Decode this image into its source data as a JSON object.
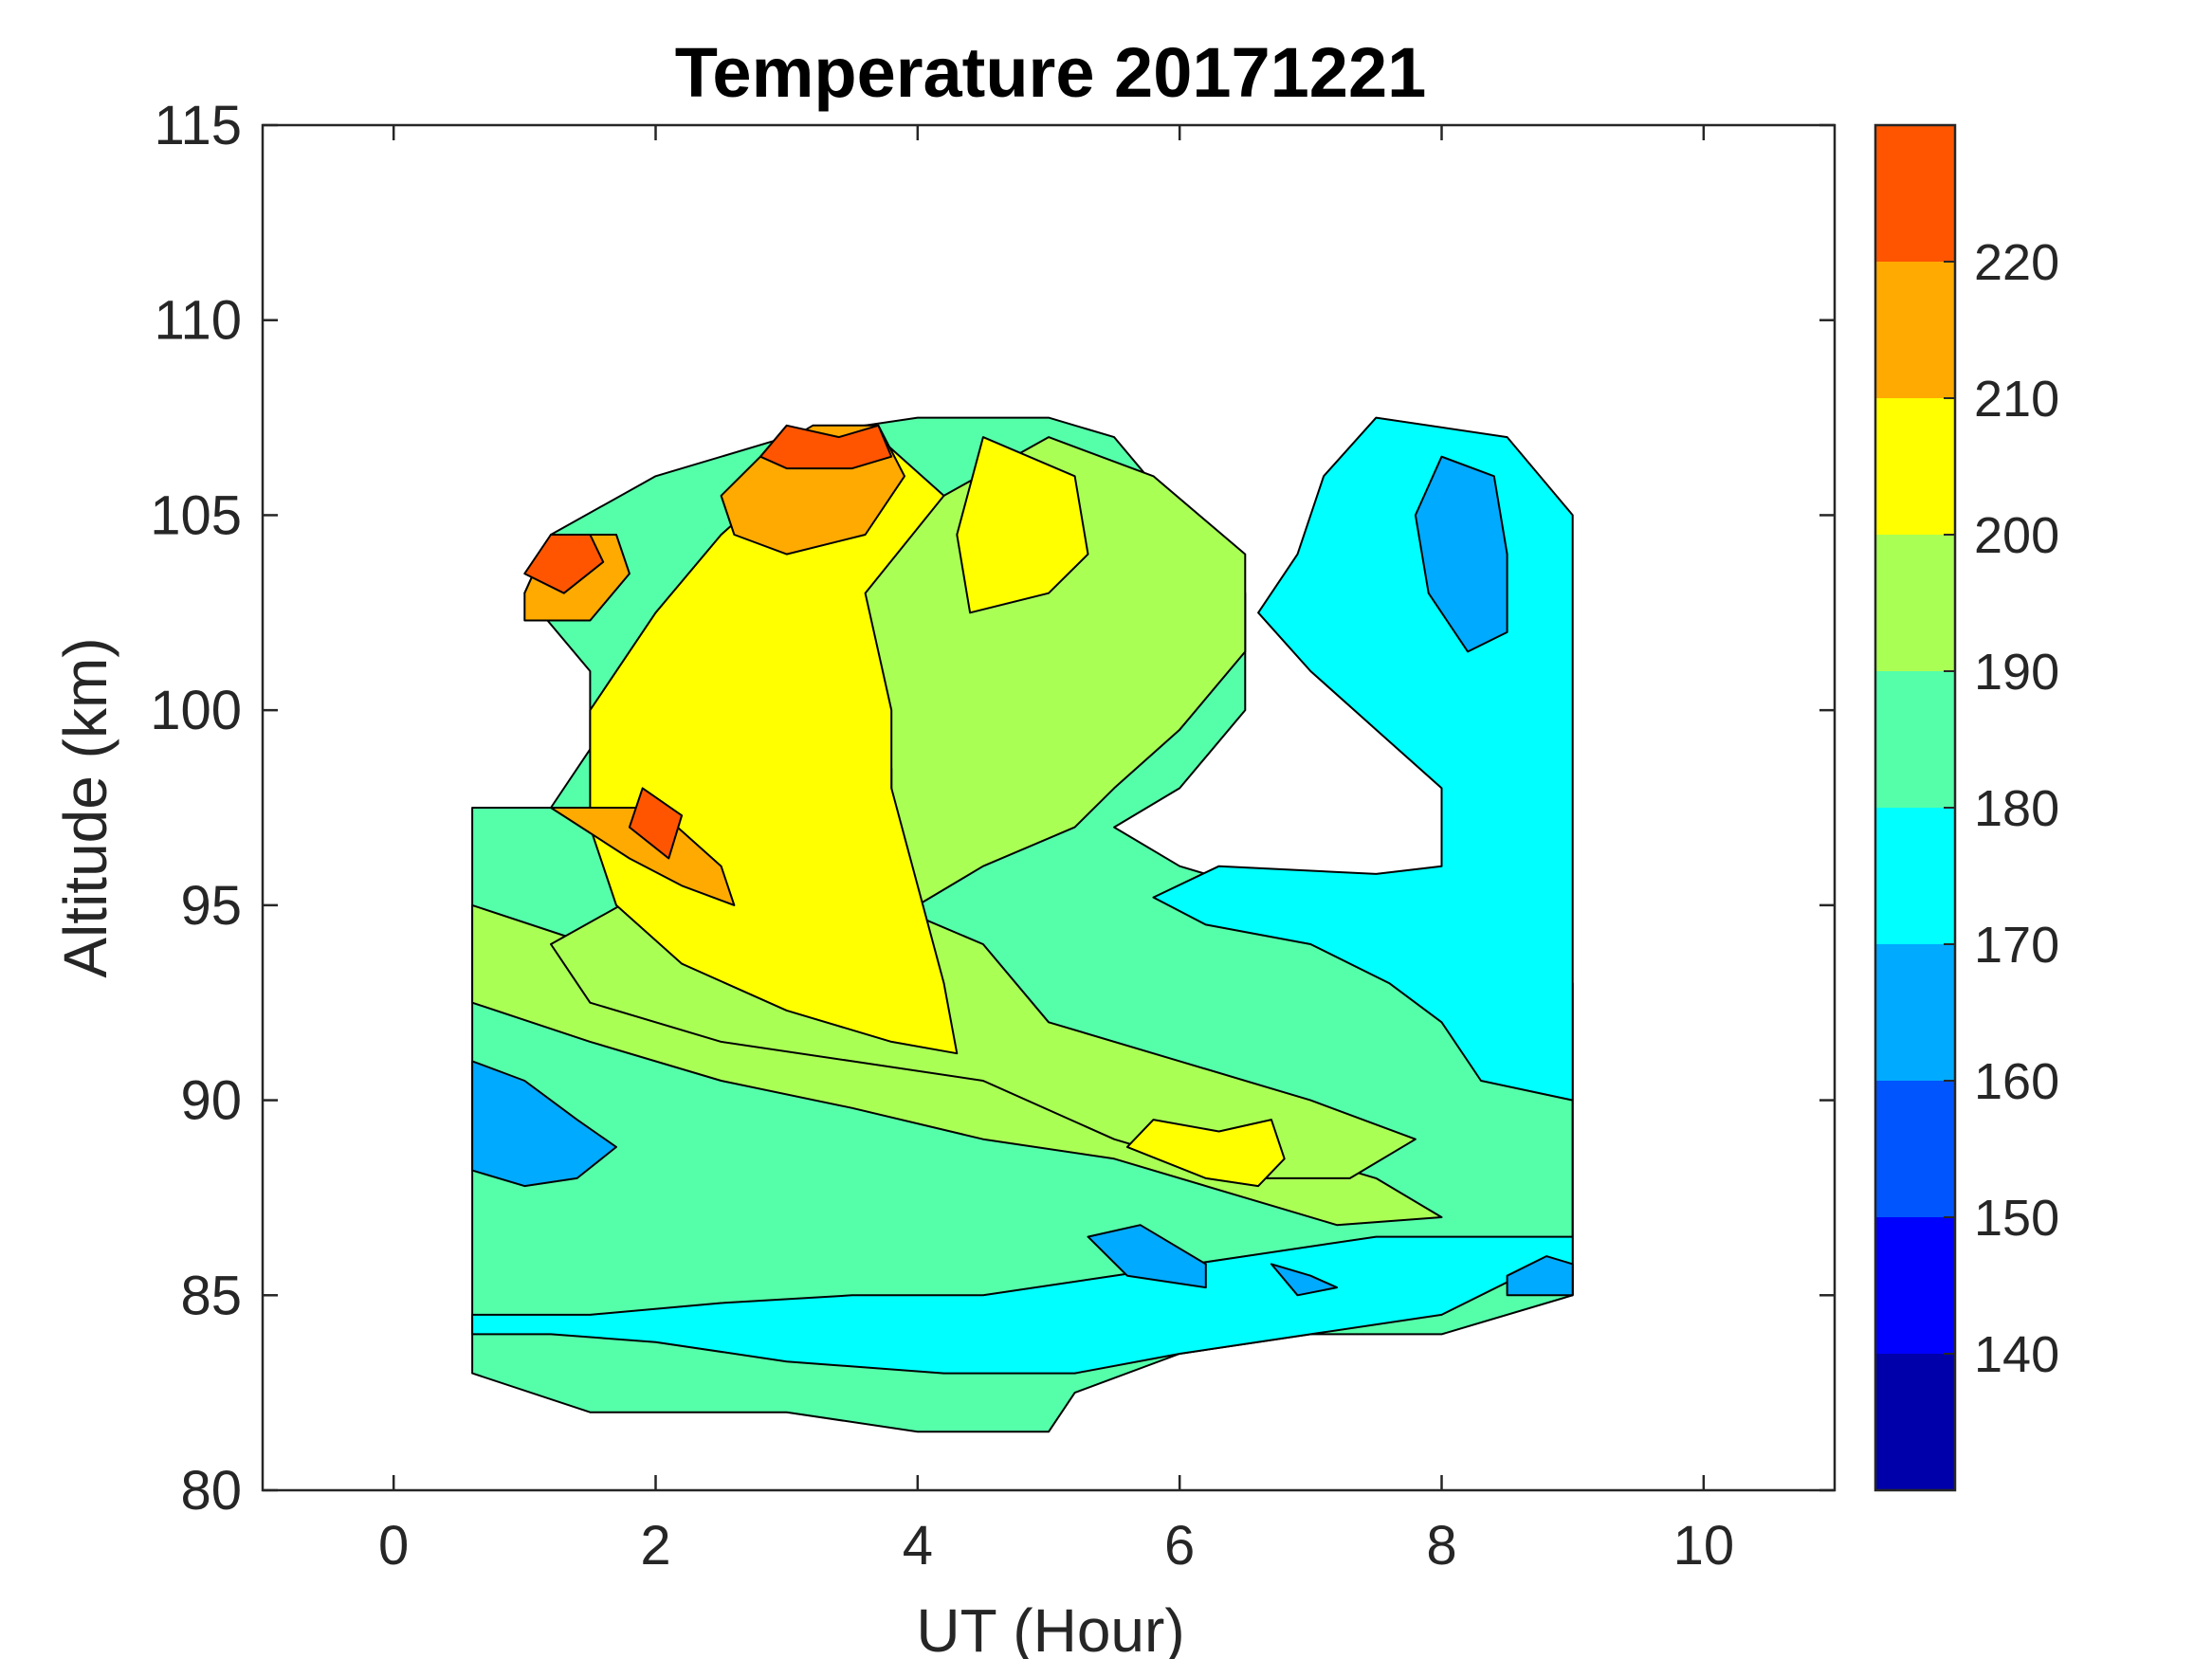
{
  "chart_data": {
    "type": "heatmap",
    "subtype": "filled-contour",
    "title": "Temperature 20171221",
    "xlabel": "UT (Hour)",
    "ylabel": "Altitude (km)",
    "xlim": [
      -1,
      11
    ],
    "ylim": [
      80,
      115
    ],
    "xticks": [
      "0",
      "2",
      "4",
      "6",
      "8",
      "10"
    ],
    "yticks": [
      "80",
      "85",
      "90",
      "95",
      "100",
      "105",
      "110",
      "115"
    ],
    "colorbar": {
      "range": [
        130,
        230
      ],
      "tick_labels": [
        "140",
        "150",
        "160",
        "170",
        "180",
        "190",
        "200",
        "210",
        "220"
      ],
      "levels": [
        130,
        140,
        150,
        160,
        170,
        180,
        190,
        200,
        210,
        220,
        230
      ],
      "colors": [
        "#0000aa",
        "#0000ff",
        "#0055ff",
        "#00aaff",
        "#00ffff",
        "#55ffaa",
        "#aaff55",
        "#ffff00",
        "#ffaa00",
        "#ff5500"
      ]
    },
    "regions": [
      {
        "level": 180,
        "points": [
          [
            0.6,
            83
          ],
          [
            1.5,
            82
          ],
          [
            3,
            82
          ],
          [
            4,
            81.5
          ],
          [
            5,
            81.5
          ],
          [
            5.2,
            82.5
          ],
          [
            6,
            83.5
          ],
          [
            7,
            84
          ],
          [
            8,
            84
          ],
          [
            9,
            85
          ],
          [
            9,
            93
          ],
          [
            8,
            94
          ],
          [
            7,
            95
          ],
          [
            6,
            96
          ],
          [
            5.5,
            97
          ],
          [
            6,
            98
          ],
          [
            6.5,
            100
          ],
          [
            6.5,
            103
          ],
          [
            6,
            105
          ],
          [
            5.5,
            107
          ],
          [
            5,
            107.5
          ],
          [
            4,
            107.5
          ],
          [
            3,
            107
          ],
          [
            2,
            106
          ],
          [
            1.2,
            104.5
          ],
          [
            1,
            103
          ],
          [
            1.5,
            101
          ],
          [
            1.5,
            99
          ],
          [
            1.2,
            97.5
          ],
          [
            0.6,
            97.5
          ]
        ]
      },
      {
        "level": 170,
        "points": [
          [
            0.6,
            84.5
          ],
          [
            1.5,
            84.5
          ],
          [
            2.5,
            84.8
          ],
          [
            3.5,
            85
          ],
          [
            4.5,
            85
          ],
          [
            5.5,
            85.5
          ],
          [
            6.5,
            86
          ],
          [
            7.5,
            86.5
          ],
          [
            8.5,
            86.5
          ],
          [
            9,
            86.5
          ],
          [
            9,
            90
          ],
          [
            8.3,
            90.5
          ],
          [
            8,
            92
          ],
          [
            7.6,
            93
          ],
          [
            7,
            94
          ],
          [
            6.2,
            94.5
          ],
          [
            5.8,
            95.2
          ],
          [
            6.3,
            96
          ],
          [
            7.5,
            95.8
          ],
          [
            8,
            96
          ],
          [
            8,
            98
          ],
          [
            7.5,
            99.5
          ],
          [
            7,
            101
          ],
          [
            6.6,
            102.5
          ],
          [
            6.9,
            104
          ],
          [
            7.1,
            106
          ],
          [
            7.5,
            107.5
          ],
          [
            8.5,
            107
          ],
          [
            9,
            105
          ],
          [
            9,
            85
          ],
          [
            8.6,
            85.5
          ],
          [
            8,
            84.5
          ],
          [
            7,
            84
          ],
          [
            6,
            83.5
          ],
          [
            5.2,
            83
          ],
          [
            4.2,
            83
          ],
          [
            3,
            83.3
          ],
          [
            2,
            83.8
          ],
          [
            1.2,
            84
          ],
          [
            0.6,
            84
          ]
        ]
      },
      {
        "level": 190,
        "points": [
          [
            0.6,
            95
          ],
          [
            1.5,
            94
          ],
          [
            2.5,
            92.5
          ],
          [
            3.5,
            91.5
          ],
          [
            4.5,
            90.5
          ],
          [
            5.5,
            89.5
          ],
          [
            6.5,
            89
          ],
          [
            7.5,
            88
          ],
          [
            8,
            87
          ],
          [
            7.2,
            86.8
          ],
          [
            6.5,
            87.5
          ],
          [
            5.5,
            88.5
          ],
          [
            4.5,
            89
          ],
          [
            3.5,
            89.8
          ],
          [
            2.5,
            90.5
          ],
          [
            1.5,
            91.5
          ],
          [
            0.6,
            92.5
          ],
          [
            0.6,
            95
          ]
        ]
      },
      {
        "level": 190,
        "points": [
          [
            3,
            96
          ],
          [
            3.8,
            95
          ],
          [
            4.5,
            94
          ],
          [
            5,
            92
          ],
          [
            6,
            91
          ],
          [
            7,
            90
          ],
          [
            7.8,
            89
          ],
          [
            7.3,
            88
          ],
          [
            6.5,
            88
          ],
          [
            5.5,
            89
          ],
          [
            4.5,
            90.5
          ],
          [
            3.5,
            91
          ],
          [
            2.5,
            91.5
          ],
          [
            1.5,
            92.5
          ],
          [
            1.2,
            94
          ],
          [
            2,
            95.5
          ],
          [
            3,
            96
          ]
        ]
      },
      {
        "level": 190,
        "points": [
          [
            3.5,
            104
          ],
          [
            4.2,
            105.5
          ],
          [
            5,
            107
          ],
          [
            5.8,
            106
          ],
          [
            6.5,
            104
          ],
          [
            6.5,
            101.5
          ],
          [
            6,
            99.5
          ],
          [
            5.5,
            98
          ],
          [
            5.2,
            97
          ],
          [
            4.5,
            96
          ],
          [
            4,
            95
          ],
          [
            3.8,
            96
          ],
          [
            3.8,
            98.5
          ],
          [
            3.6,
            101
          ],
          [
            3.5,
            104
          ]
        ]
      },
      {
        "level": 200,
        "points": [
          [
            1.5,
            100
          ],
          [
            2,
            102.5
          ],
          [
            2.5,
            104.5
          ],
          [
            3,
            106
          ],
          [
            3.7,
            107
          ],
          [
            4.2,
            105.5
          ],
          [
            3.6,
            103
          ],
          [
            3.8,
            100
          ],
          [
            3.8,
            98
          ],
          [
            4.2,
            93
          ],
          [
            4.3,
            91.2
          ],
          [
            3.8,
            91.5
          ],
          [
            3,
            92.3
          ],
          [
            2.2,
            93.5
          ],
          [
            1.7,
            95
          ],
          [
            1.5,
            97
          ],
          [
            1.5,
            100
          ]
        ]
      },
      {
        "level": 200,
        "points": [
          [
            4.5,
            107
          ],
          [
            5.2,
            106
          ],
          [
            5.3,
            104
          ],
          [
            5,
            103
          ],
          [
            4.4,
            102.5
          ],
          [
            4.3,
            104.5
          ],
          [
            4.5,
            107
          ]
        ]
      },
      {
        "level": 200,
        "points": [
          [
            5.6,
            88.8
          ],
          [
            5.8,
            89.5
          ],
          [
            6.3,
            89.2
          ],
          [
            6.7,
            89.5
          ],
          [
            6.8,
            88.5
          ],
          [
            6.6,
            87.8
          ],
          [
            6.2,
            88
          ],
          [
            5.6,
            88.8
          ]
        ]
      },
      {
        "level": 210,
        "points": [
          [
            1.2,
            97.5
          ],
          [
            2,
            97.5
          ],
          [
            2.5,
            96
          ],
          [
            2.6,
            95
          ],
          [
            2.2,
            95.5
          ],
          [
            1.8,
            96.2
          ],
          [
            1.2,
            97.5
          ]
        ]
      },
      {
        "level": 210,
        "points": [
          [
            2.5,
            105.5
          ],
          [
            2.8,
            106.5
          ],
          [
            3.2,
            107.3
          ],
          [
            3.7,
            107.3
          ],
          [
            3.9,
            106
          ],
          [
            3.6,
            104.5
          ],
          [
            3,
            104
          ],
          [
            2.6,
            104.5
          ],
          [
            2.5,
            105.5
          ]
        ]
      },
      {
        "level": 210,
        "points": [
          [
            1,
            103
          ],
          [
            1.2,
            104.5
          ],
          [
            1.7,
            104.5
          ],
          [
            1.8,
            103.5
          ],
          [
            1.5,
            102.3
          ],
          [
            1,
            102.3
          ],
          [
            1,
            103
          ]
        ]
      },
      {
        "level": 220,
        "points": [
          [
            1,
            103.5
          ],
          [
            1.2,
            104.5
          ],
          [
            1.5,
            104.5
          ],
          [
            1.6,
            103.8
          ],
          [
            1.3,
            103
          ],
          [
            1,
            103.5
          ]
        ]
      },
      {
        "level": 220,
        "points": [
          [
            2.8,
            106.5
          ],
          [
            3,
            107.3
          ],
          [
            3.4,
            107
          ],
          [
            3.7,
            107.3
          ],
          [
            3.8,
            106.5
          ],
          [
            3.5,
            106.2
          ],
          [
            3,
            106.2
          ],
          [
            2.8,
            106.5
          ]
        ]
      },
      {
        "level": 220,
        "points": [
          [
            1.9,
            98
          ],
          [
            2.2,
            97.3
          ],
          [
            2.1,
            96.2
          ],
          [
            1.8,
            97
          ],
          [
            1.9,
            98
          ]
        ]
      },
      {
        "level": 160,
        "points": [
          [
            0.6,
            91
          ],
          [
            1,
            90.5
          ],
          [
            1.4,
            89.5
          ],
          [
            1.7,
            88.8
          ],
          [
            1.4,
            88
          ],
          [
            1,
            87.8
          ],
          [
            0.6,
            88.2
          ],
          [
            0.6,
            91
          ]
        ]
      },
      {
        "level": 160,
        "points": [
          [
            5.3,
            86.5
          ],
          [
            5.7,
            86.8
          ],
          [
            6.2,
            85.8
          ],
          [
            6.2,
            85.2
          ],
          [
            5.6,
            85.5
          ],
          [
            5.3,
            86.5
          ]
        ]
      },
      {
        "level": 160,
        "points": [
          [
            8,
            106.5
          ],
          [
            8.4,
            106
          ],
          [
            8.5,
            104
          ],
          [
            8.5,
            102
          ],
          [
            8.2,
            101.5
          ],
          [
            7.9,
            103
          ],
          [
            7.8,
            105
          ],
          [
            8,
            106.5
          ]
        ]
      },
      {
        "level": 160,
        "points": [
          [
            8.5,
            85.5
          ],
          [
            8.8,
            86
          ],
          [
            9,
            85.8
          ],
          [
            9,
            85
          ],
          [
            8.5,
            85
          ],
          [
            8.5,
            85.5
          ]
        ]
      },
      {
        "level": 160,
        "points": [
          [
            6.7,
            85.8
          ],
          [
            7,
            85.5
          ],
          [
            7.2,
            85.2
          ],
          [
            6.9,
            85
          ],
          [
            6.7,
            85.8
          ]
        ]
      }
    ]
  }
}
